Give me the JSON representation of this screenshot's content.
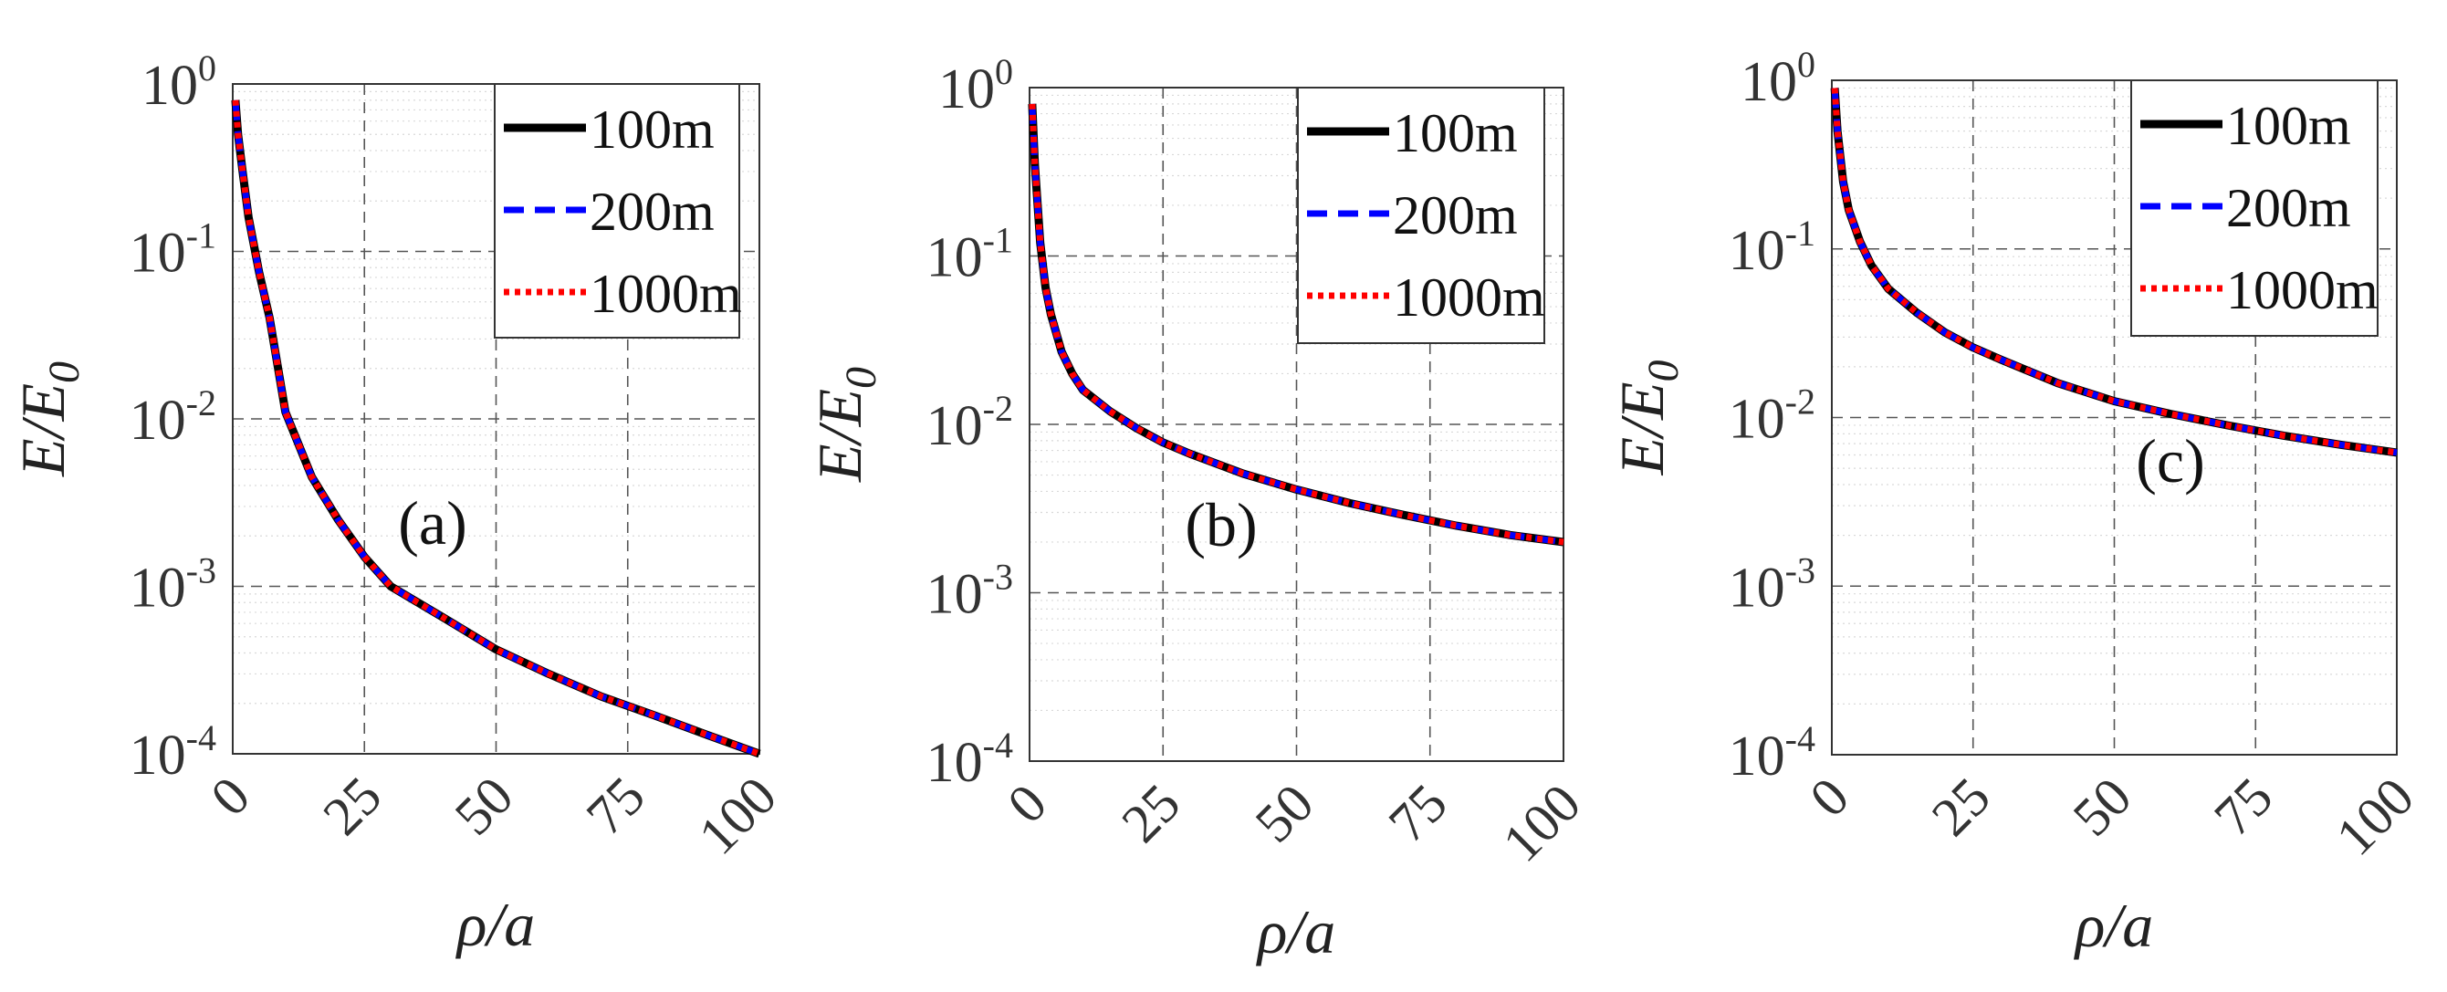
{
  "figure": {
    "y_scale": "log",
    "y_tick_labels": [
      {
        "base": "10",
        "exp": "0",
        "value": 1
      },
      {
        "base": "10",
        "exp": "-1",
        "value": 0.1
      },
      {
        "base": "10",
        "exp": "-2",
        "value": 0.01
      },
      {
        "base": "10",
        "exp": "-3",
        "value": 0.001
      },
      {
        "base": "10",
        "exp": "-4",
        "value": 0.0001
      }
    ],
    "x_tick_labels": [
      "0",
      "25",
      "50",
      "75",
      "100"
    ]
  },
  "chart_data": [
    {
      "type": "line",
      "panel_label": "(a)",
      "xlabel": "ρ/a",
      "ylabel_main": "E/E",
      "ylabel_sub": "0",
      "xlim": [
        0,
        100
      ],
      "ylim": [
        0.0001,
        1
      ],
      "grid": true,
      "legend_position": "top-right",
      "x": [
        0.5,
        1,
        2,
        3,
        5,
        7,
        10,
        15,
        20,
        25,
        30,
        40,
        50,
        60,
        70,
        80,
        90,
        100
      ],
      "series": [
        {
          "name": "100m",
          "color": "#000000",
          "style": "solid",
          "values": [
            0.8,
            0.5,
            0.28,
            0.16,
            0.075,
            0.04,
            0.011,
            0.0045,
            0.0025,
            0.0015,
            0.001,
            0.00065,
            0.00042,
            0.0003,
            0.00022,
            0.00017,
            0.00013,
            0.0001
          ]
        },
        {
          "name": "200m",
          "color": "#0000ff",
          "style": "dashed",
          "values": [
            0.8,
            0.5,
            0.28,
            0.16,
            0.075,
            0.04,
            0.011,
            0.0045,
            0.0025,
            0.0015,
            0.001,
            0.00065,
            0.00042,
            0.0003,
            0.00022,
            0.00017,
            0.00013,
            0.0001
          ]
        },
        {
          "name": "1000m",
          "color": "#ff0000",
          "style": "dotted",
          "values": [
            0.8,
            0.5,
            0.28,
            0.16,
            0.075,
            0.04,
            0.011,
            0.0045,
            0.0025,
            0.0015,
            0.001,
            0.00065,
            0.00042,
            0.0003,
            0.00022,
            0.00017,
            0.00013,
            0.0001
          ]
        }
      ]
    },
    {
      "type": "line",
      "panel_label": "(b)",
      "xlabel": "ρ/a",
      "ylabel_main": "E/E",
      "ylabel_sub": "0",
      "xlim": [
        0,
        100
      ],
      "ylim": [
        0.0001,
        1
      ],
      "grid": true,
      "legend_position": "top-right",
      "x": [
        0.5,
        1,
        2,
        3,
        4,
        6,
        8,
        10,
        15,
        20,
        25,
        30,
        40,
        50,
        60,
        70,
        80,
        90,
        100
      ],
      "series": [
        {
          "name": "100m",
          "color": "#000000",
          "style": "solid",
          "values": [
            0.8,
            0.35,
            0.12,
            0.065,
            0.045,
            0.027,
            0.02,
            0.016,
            0.012,
            0.0095,
            0.0078,
            0.0067,
            0.0051,
            0.0041,
            0.0034,
            0.0029,
            0.0025,
            0.0022,
            0.002
          ]
        },
        {
          "name": "200m",
          "color": "#0000ff",
          "style": "dashed",
          "values": [
            0.8,
            0.35,
            0.12,
            0.065,
            0.045,
            0.027,
            0.02,
            0.016,
            0.012,
            0.0095,
            0.0078,
            0.0067,
            0.0051,
            0.0041,
            0.0034,
            0.0029,
            0.0025,
            0.0022,
            0.002
          ]
        },
        {
          "name": "1000m",
          "color": "#ff0000",
          "style": "dotted",
          "values": [
            0.8,
            0.35,
            0.12,
            0.065,
            0.045,
            0.027,
            0.02,
            0.016,
            0.012,
            0.0095,
            0.0078,
            0.0067,
            0.0051,
            0.0041,
            0.0034,
            0.0029,
            0.0025,
            0.0022,
            0.002
          ]
        }
      ]
    },
    {
      "type": "line",
      "panel_label": "(c)",
      "xlabel": "ρ/a",
      "ylabel_main": "E/E",
      "ylabel_sub": "0",
      "xlim": [
        0,
        100
      ],
      "ylim": [
        0.0001,
        1
      ],
      "grid": true,
      "legend_position": "top-right",
      "x": [
        0.5,
        1,
        2,
        3,
        5,
        7,
        10,
        15,
        20,
        25,
        30,
        40,
        50,
        60,
        70,
        80,
        90,
        100
      ],
      "series": [
        {
          "name": "100m",
          "color": "#000000",
          "style": "solid",
          "values": [
            0.9,
            0.5,
            0.25,
            0.17,
            0.11,
            0.08,
            0.058,
            0.042,
            0.032,
            0.026,
            0.022,
            0.016,
            0.0125,
            0.0105,
            0.009,
            0.0078,
            0.0069,
            0.0062
          ]
        },
        {
          "name": "200m",
          "color": "#0000ff",
          "style": "dashed",
          "values": [
            0.9,
            0.5,
            0.25,
            0.17,
            0.11,
            0.08,
            0.058,
            0.042,
            0.032,
            0.026,
            0.022,
            0.016,
            0.0125,
            0.0105,
            0.009,
            0.0078,
            0.0069,
            0.0062
          ]
        },
        {
          "name": "1000m",
          "color": "#ff0000",
          "style": "dotted",
          "values": [
            0.9,
            0.5,
            0.25,
            0.17,
            0.11,
            0.08,
            0.058,
            0.042,
            0.032,
            0.026,
            0.022,
            0.016,
            0.0125,
            0.0105,
            0.009,
            0.0078,
            0.0069,
            0.0062
          ]
        }
      ]
    }
  ]
}
